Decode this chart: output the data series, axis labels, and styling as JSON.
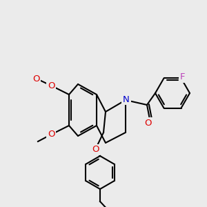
{
  "bg_color": "#ebebeb",
  "bond_color": "#000000",
  "bond_width": 1.5,
  "atom_colors": {
    "O": "#ff0000",
    "N": "#0000ff",
    "F": "#cc44cc",
    "C": "#000000"
  },
  "font_size_label": 9,
  "font_size_small": 7
}
